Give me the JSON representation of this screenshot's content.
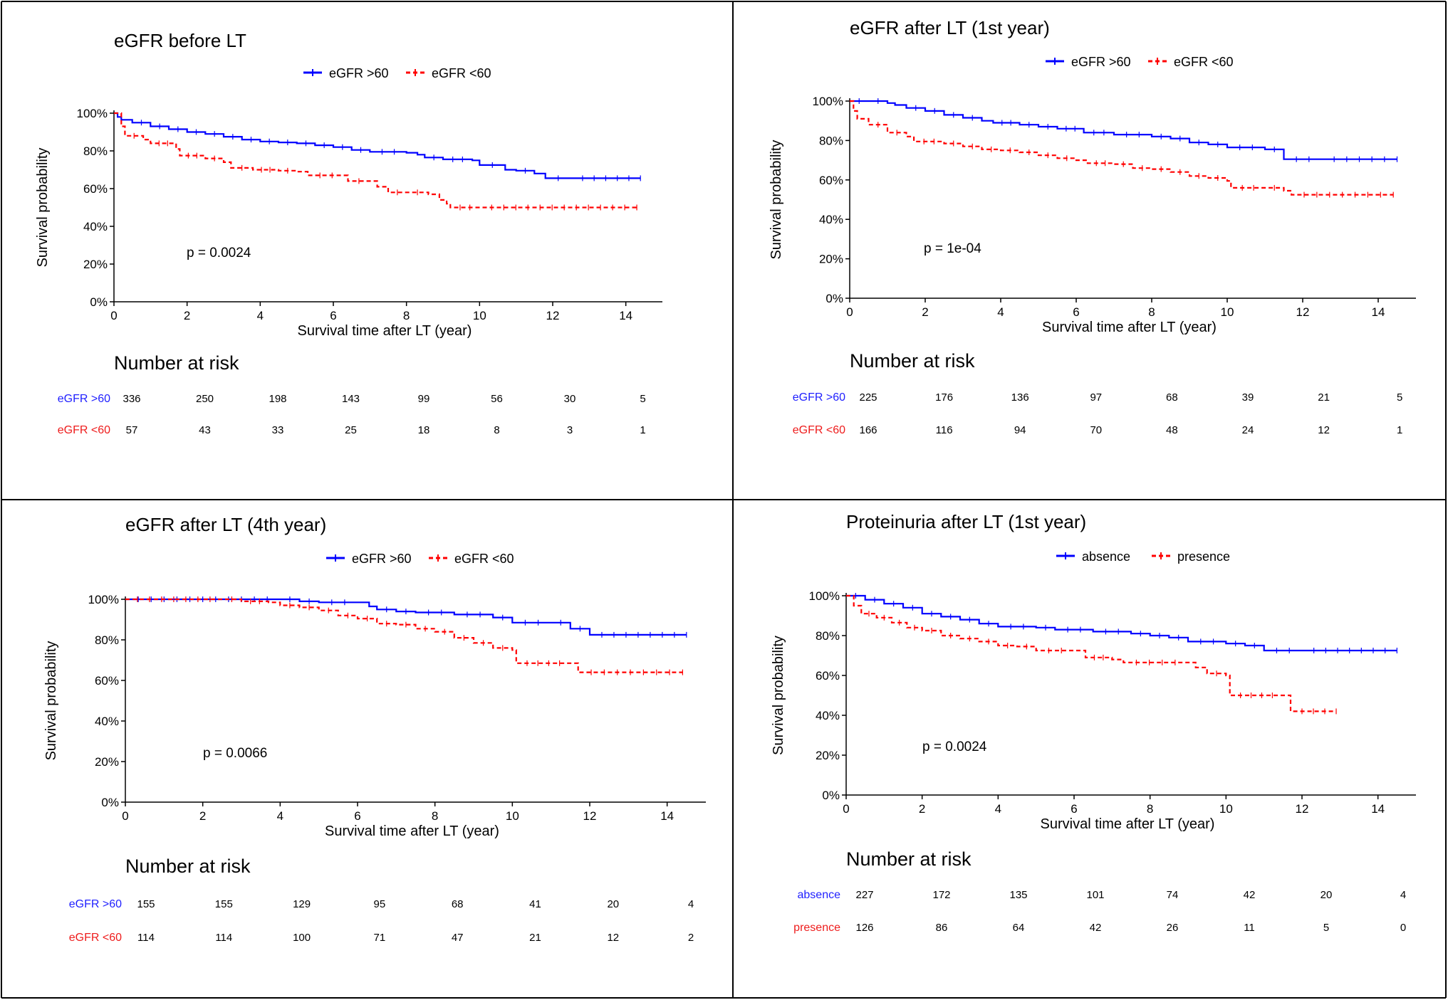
{
  "chart_data": [
    {
      "type": "line",
      "subtype": "kaplan-meier",
      "title": "eGFR before LT",
      "xlabel": "Survival time after LT (year)",
      "ylabel": "Survival probability",
      "xlim": [
        0,
        15
      ],
      "ylim": [
        0,
        100
      ],
      "xticks": [
        "0",
        "2",
        "4",
        "6",
        "8",
        "10",
        "12",
        "14"
      ],
      "yticks": [
        "0%",
        "20%",
        "40%",
        "60%",
        "80%",
        "100%"
      ],
      "pvalue": "p = 0.0024",
      "legend_position": "top-center",
      "series": [
        {
          "name": "eGFR >60",
          "color": "#0000ff",
          "dash": false,
          "points": [
            [
              0,
              100
            ],
            [
              0.1,
              98
            ],
            [
              0.2,
              96.5
            ],
            [
              0.5,
              95
            ],
            [
              1,
              93
            ],
            [
              1.5,
              91.5
            ],
            [
              2,
              90
            ],
            [
              2.5,
              89
            ],
            [
              3,
              87.5
            ],
            [
              3.5,
              86
            ],
            [
              4,
              85
            ],
            [
              4.5,
              84.5
            ],
            [
              5,
              84
            ],
            [
              5.5,
              83
            ],
            [
              6,
              82
            ],
            [
              6.5,
              80.5
            ],
            [
              7,
              79.5
            ],
            [
              8,
              79
            ],
            [
              8.3,
              78
            ],
            [
              8.5,
              76.5
            ],
            [
              9,
              75.5
            ],
            [
              9.8,
              75
            ],
            [
              10,
              72.5
            ],
            [
              10.7,
              70
            ],
            [
              11,
              69.5
            ],
            [
              11.5,
              68
            ],
            [
              11.8,
              65.5
            ],
            [
              12.5,
              65.5
            ],
            [
              14.4,
              65.5
            ]
          ]
        },
        {
          "name": "eGFR <60",
          "color": "#ff0000",
          "dash": true,
          "points": [
            [
              0,
              100
            ],
            [
              0.2,
              93
            ],
            [
              0.3,
              88
            ],
            [
              0.8,
              86
            ],
            [
              1,
              84
            ],
            [
              1.7,
              81
            ],
            [
              1.8,
              77.5
            ],
            [
              2.5,
              76
            ],
            [
              3,
              74
            ],
            [
              3.2,
              71
            ],
            [
              3.8,
              70
            ],
            [
              4.5,
              69.5
            ],
            [
              5,
              69
            ],
            [
              5.3,
              67
            ],
            [
              6.3,
              67
            ],
            [
              6.4,
              64
            ],
            [
              7,
              64
            ],
            [
              7.2,
              61
            ],
            [
              7.5,
              58
            ],
            [
              8,
              58
            ],
            [
              8.6,
              57
            ],
            [
              8.9,
              54
            ],
            [
              9.1,
              52
            ],
            [
              9.2,
              50
            ],
            [
              10,
              50
            ],
            [
              14.3,
              50
            ]
          ]
        }
      ],
      "risk_table": {
        "title": "Number at risk",
        "times": [
          0,
          2,
          4,
          6,
          8,
          10,
          12,
          14
        ],
        "rows": [
          {
            "label": "eGFR >60",
            "color": "#1f1fff",
            "values": [
              "336",
              "250",
              "198",
              "143",
              "99",
              "56",
              "30",
              "5"
            ]
          },
          {
            "label": "eGFR <60",
            "color": "#ee1c1c",
            "values": [
              "57",
              "43",
              "33",
              "25",
              "18",
              "8",
              "3",
              "1"
            ]
          }
        ]
      }
    },
    {
      "type": "line",
      "subtype": "kaplan-meier",
      "title": "eGFR after LT (1st year)",
      "xlabel": "Survival time after LT (year)",
      "ylabel": "Survival probability",
      "xlim": [
        0,
        15
      ],
      "ylim": [
        0,
        100
      ],
      "xticks": [
        "0",
        "2",
        "4",
        "6",
        "8",
        "10",
        "12",
        "14"
      ],
      "yticks": [
        "0%",
        "20%",
        "40%",
        "60%",
        "80%",
        "100%"
      ],
      "pvalue": "p = 1e-04",
      "legend_position": "top-center",
      "series": [
        {
          "name": "eGFR >60",
          "color": "#0000ff",
          "dash": false,
          "points": [
            [
              0,
              100
            ],
            [
              0.5,
              100
            ],
            [
              1,
              99
            ],
            [
              1.2,
              98
            ],
            [
              1.5,
              96.5
            ],
            [
              2,
              95
            ],
            [
              2.5,
              93
            ],
            [
              3,
              91.5
            ],
            [
              3.5,
              90
            ],
            [
              3.8,
              89
            ],
            [
              4.5,
              88
            ],
            [
              5,
              87
            ],
            [
              5.5,
              86
            ],
            [
              6.2,
              84
            ],
            [
              7,
              83
            ],
            [
              8,
              82
            ],
            [
              8.5,
              81
            ],
            [
              9,
              79
            ],
            [
              9.5,
              78
            ],
            [
              10,
              76.5
            ],
            [
              11,
              75.5
            ],
            [
              11.5,
              70.5
            ],
            [
              12.5,
              70.5
            ],
            [
              14.5,
              70.5
            ]
          ]
        },
        {
          "name": "eGFR <60",
          "color": "#ff0000",
          "dash": true,
          "points": [
            [
              0,
              100
            ],
            [
              0.1,
              95
            ],
            [
              0.2,
              91
            ],
            [
              0.5,
              88
            ],
            [
              1,
              84
            ],
            [
              1.5,
              82
            ],
            [
              1.7,
              79.5
            ],
            [
              2.5,
              78.5
            ],
            [
              3,
              77
            ],
            [
              3.5,
              75.5
            ],
            [
              4,
              75
            ],
            [
              4.5,
              74
            ],
            [
              5,
              72.5
            ],
            [
              5.5,
              71
            ],
            [
              6,
              70
            ],
            [
              6.3,
              68.5
            ],
            [
              7,
              68
            ],
            [
              7.5,
              66
            ],
            [
              8,
              65.5
            ],
            [
              8.5,
              64
            ],
            [
              9,
              62
            ],
            [
              9.5,
              61
            ],
            [
              10,
              59.5
            ],
            [
              10.1,
              56
            ],
            [
              11,
              56
            ],
            [
              11.5,
              54.5
            ],
            [
              11.7,
              52.5
            ],
            [
              14.4,
              52.5
            ]
          ]
        }
      ],
      "risk_table": {
        "title": "Number at risk",
        "times": [
          0,
          2,
          4,
          6,
          8,
          10,
          12,
          14
        ],
        "rows": [
          {
            "label": "eGFR >60",
            "color": "#1f1fff",
            "values": [
              "225",
              "176",
              "136",
              "97",
              "68",
              "39",
              "21",
              "5"
            ]
          },
          {
            "label": "eGFR <60",
            "color": "#ee1c1c",
            "values": [
              "166",
              "116",
              "94",
              "70",
              "48",
              "24",
              "12",
              "1"
            ]
          }
        ]
      }
    },
    {
      "type": "line",
      "subtype": "kaplan-meier",
      "title": "eGFR after LT (4th year)",
      "xlabel": "Survival time after LT (year)",
      "ylabel": "Survival probability",
      "xlim": [
        0,
        15
      ],
      "ylim": [
        0,
        100
      ],
      "xticks": [
        "0",
        "2",
        "4",
        "6",
        "8",
        "10",
        "12",
        "14"
      ],
      "yticks": [
        "0%",
        "20%",
        "40%",
        "60%",
        "80%",
        "100%"
      ],
      "pvalue": "p = 0.0066",
      "legend_position": "top-center",
      "series": [
        {
          "name": "eGFR >60",
          "color": "#0000ff",
          "dash": false,
          "points": [
            [
              0,
              100
            ],
            [
              4,
              100
            ],
            [
              4.5,
              99
            ],
            [
              5,
              98.5
            ],
            [
              6,
              98.5
            ],
            [
              6.3,
              96.5
            ],
            [
              6.5,
              95
            ],
            [
              7,
              94
            ],
            [
              7.5,
              93.5
            ],
            [
              8.5,
              92.5
            ],
            [
              9.5,
              91
            ],
            [
              10,
              88.5
            ],
            [
              11,
              88.5
            ],
            [
              11.5,
              85.5
            ],
            [
              12,
              82.5
            ],
            [
              14.5,
              82.5
            ]
          ]
        },
        {
          "name": "eGFR <60",
          "color": "#ff0000",
          "dash": true,
          "points": [
            [
              0,
              100
            ],
            [
              2.5,
              100
            ],
            [
              3,
              99
            ],
            [
              3.7,
              98.5
            ],
            [
              4,
              97
            ],
            [
              4.5,
              96
            ],
            [
              5,
              94.5
            ],
            [
              5.5,
              92
            ],
            [
              6,
              90.5
            ],
            [
              6.5,
              88
            ],
            [
              7,
              87.5
            ],
            [
              7.5,
              85.5
            ],
            [
              8,
              84
            ],
            [
              8.5,
              81
            ],
            [
              9,
              78.5
            ],
            [
              9.5,
              76
            ],
            [
              10,
              75
            ],
            [
              10.1,
              68.5
            ],
            [
              11.5,
              68.5
            ],
            [
              11.7,
              64
            ],
            [
              14.4,
              64
            ]
          ]
        }
      ],
      "risk_table": {
        "title": "Number at risk",
        "times": [
          0,
          2,
          4,
          6,
          8,
          10,
          12,
          14
        ],
        "rows": [
          {
            "label": "eGFR >60",
            "color": "#1f1fff",
            "values": [
              "155",
              "155",
              "129",
              "95",
              "68",
              "41",
              "20",
              "4"
            ]
          },
          {
            "label": "eGFR <60",
            "color": "#ee1c1c",
            "values": [
              "114",
              "114",
              "100",
              "71",
              "47",
              "21",
              "12",
              "2"
            ]
          }
        ]
      }
    },
    {
      "type": "line",
      "subtype": "kaplan-meier",
      "title": "Proteinuria after LT (1st year)",
      "xlabel": "Survival time after LT (year)",
      "ylabel": "Survival probability",
      "xlim": [
        0,
        15
      ],
      "ylim": [
        0,
        100
      ],
      "xticks": [
        "0",
        "2",
        "4",
        "6",
        "8",
        "10",
        "12",
        "14"
      ],
      "yticks": [
        "0%",
        "20%",
        "40%",
        "60%",
        "80%",
        "100%"
      ],
      "pvalue": "p = 0.0024",
      "legend_position": "top-center",
      "series": [
        {
          "name": "absence",
          "color": "#0000ff",
          "dash": false,
          "points": [
            [
              0,
              100
            ],
            [
              0.5,
              98
            ],
            [
              1,
              96
            ],
            [
              1.5,
              94
            ],
            [
              2,
              91
            ],
            [
              2.5,
              89.5
            ],
            [
              3,
              88
            ],
            [
              3.5,
              86
            ],
            [
              4,
              84.5
            ],
            [
              5,
              84
            ],
            [
              5.5,
              83
            ],
            [
              6.5,
              82
            ],
            [
              7.5,
              81
            ],
            [
              8,
              80
            ],
            [
              8.5,
              79
            ],
            [
              9,
              77
            ],
            [
              10,
              76
            ],
            [
              10.5,
              75
            ],
            [
              11,
              72.5
            ],
            [
              12,
              72.5
            ],
            [
              14.5,
              72.5
            ]
          ]
        },
        {
          "name": "presence",
          "color": "#ff0000",
          "dash": true,
          "points": [
            [
              0,
              100
            ],
            [
              0.2,
              95
            ],
            [
              0.4,
              91
            ],
            [
              0.8,
              89
            ],
            [
              1.2,
              86.5
            ],
            [
              1.6,
              84
            ],
            [
              2,
              82.5
            ],
            [
              2.5,
              80
            ],
            [
              3,
              78.5
            ],
            [
              3.5,
              77
            ],
            [
              4,
              75
            ],
            [
              4.5,
              74.5
            ],
            [
              5,
              72.5
            ],
            [
              6,
              72.5
            ],
            [
              6.3,
              69
            ],
            [
              7,
              68
            ],
            [
              7.3,
              66.5
            ],
            [
              9,
              66.5
            ],
            [
              9.2,
              64
            ],
            [
              9.5,
              61
            ],
            [
              10,
              60
            ],
            [
              10.1,
              50
            ],
            [
              11.5,
              50
            ],
            [
              11.7,
              42
            ],
            [
              12.9,
              42
            ]
          ]
        }
      ],
      "risk_table": {
        "title": "Number at risk",
        "times": [
          0,
          2,
          4,
          6,
          8,
          10,
          12,
          14
        ],
        "rows": [
          {
            "label": "absence",
            "color": "#1f1fff",
            "values": [
              "227",
              "172",
              "135",
              "101",
              "74",
              "42",
              "20",
              "4"
            ]
          },
          {
            "label": "presence",
            "color": "#ee1c1c",
            "values": [
              "126",
              "86",
              "64",
              "42",
              "26",
              "11",
              "5",
              "0"
            ]
          }
        ]
      }
    }
  ]
}
